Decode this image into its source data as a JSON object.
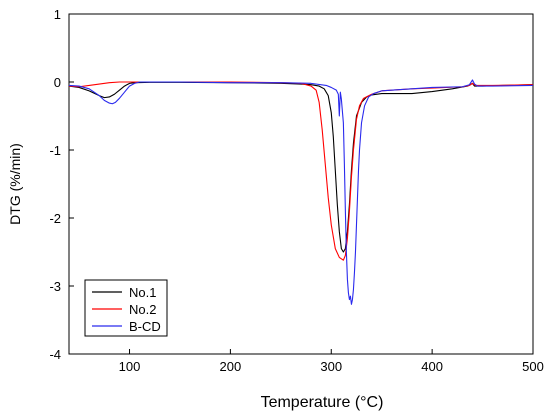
{
  "chart_data": {
    "type": "line",
    "xlabel": "Temperature (°C)",
    "ylabel": "DTG (%/min)",
    "xlim": [
      40,
      500
    ],
    "ylim": [
      -4,
      1
    ],
    "x_ticks": [
      100,
      200,
      300,
      400,
      500
    ],
    "y_ticks": [
      1,
      0,
      -1,
      -2,
      -3,
      -4
    ],
    "grid": false,
    "legend_position": "bottom-left",
    "series": [
      {
        "name": "No.1",
        "color": "#000000",
        "points": [
          [
            40,
            -0.06
          ],
          [
            50,
            -0.08
          ],
          [
            60,
            -0.13
          ],
          [
            70,
            -0.2
          ],
          [
            75,
            -0.23
          ],
          [
            80,
            -0.22
          ],
          [
            85,
            -0.18
          ],
          [
            90,
            -0.12
          ],
          [
            95,
            -0.06
          ],
          [
            100,
            -0.02
          ],
          [
            105,
            -0.01
          ],
          [
            120,
            -0.005
          ],
          [
            150,
            -0.005
          ],
          [
            200,
            -0.01
          ],
          [
            250,
            -0.02
          ],
          [
            270,
            -0.03
          ],
          [
            280,
            -0.04
          ],
          [
            288,
            -0.06
          ],
          [
            293,
            -0.1
          ],
          [
            297,
            -0.2
          ],
          [
            300,
            -0.45
          ],
          [
            302,
            -0.8
          ],
          [
            304,
            -1.3
          ],
          [
            306,
            -1.8
          ],
          [
            308,
            -2.2
          ],
          [
            310,
            -2.45
          ],
          [
            312,
            -2.5
          ],
          [
            314,
            -2.45
          ],
          [
            316,
            -2.2
          ],
          [
            318,
            -1.8
          ],
          [
            320,
            -1.3
          ],
          [
            322,
            -0.9
          ],
          [
            325,
            -0.5
          ],
          [
            330,
            -0.3
          ],
          [
            335,
            -0.22
          ],
          [
            340,
            -0.19
          ],
          [
            350,
            -0.17
          ],
          [
            380,
            -0.17
          ],
          [
            400,
            -0.14
          ],
          [
            420,
            -0.1
          ],
          [
            435,
            -0.06
          ],
          [
            440,
            -0.02
          ],
          [
            442,
            -0.06
          ],
          [
            450,
            -0.06
          ],
          [
            470,
            -0.05
          ],
          [
            500,
            -0.04
          ]
        ]
      },
      {
        "name": "No.2",
        "color": "#ff0000",
        "points": [
          [
            40,
            -0.06
          ],
          [
            50,
            -0.07
          ],
          [
            60,
            -0.05
          ],
          [
            70,
            -0.03
          ],
          [
            80,
            -0.01
          ],
          [
            90,
            0
          ],
          [
            100,
            0
          ],
          [
            150,
            0
          ],
          [
            200,
            0
          ],
          [
            250,
            -0.01
          ],
          [
            270,
            -0.02
          ],
          [
            280,
            -0.06
          ],
          [
            285,
            -0.12
          ],
          [
            288,
            -0.3
          ],
          [
            291,
            -0.7
          ],
          [
            294,
            -1.2
          ],
          [
            297,
            -1.7
          ],
          [
            300,
            -2.1
          ],
          [
            304,
            -2.45
          ],
          [
            308,
            -2.58
          ],
          [
            312,
            -2.62
          ],
          [
            314,
            -2.55
          ],
          [
            316,
            -2.3
          ],
          [
            318,
            -1.9
          ],
          [
            320,
            -1.4
          ],
          [
            322,
            -1.0
          ],
          [
            325,
            -0.55
          ],
          [
            328,
            -0.35
          ],
          [
            332,
            -0.24
          ],
          [
            340,
            -0.18
          ],
          [
            350,
            -0.13
          ],
          [
            380,
            -0.1
          ],
          [
            400,
            -0.09
          ],
          [
            430,
            -0.07
          ],
          [
            437,
            -0.05
          ],
          [
            440,
            -0.02
          ],
          [
            443,
            -0.05
          ],
          [
            460,
            -0.05
          ],
          [
            500,
            -0.04
          ]
        ]
      },
      {
        "name": "B-CD",
        "color": "#2a2aee",
        "points": [
          [
            40,
            -0.05
          ],
          [
            50,
            -0.06
          ],
          [
            60,
            -0.1
          ],
          [
            70,
            -0.2
          ],
          [
            75,
            -0.27
          ],
          [
            80,
            -0.31
          ],
          [
            83,
            -0.32
          ],
          [
            86,
            -0.3
          ],
          [
            90,
            -0.24
          ],
          [
            95,
            -0.15
          ],
          [
            100,
            -0.06
          ],
          [
            105,
            -0.02
          ],
          [
            110,
            0
          ],
          [
            150,
            0
          ],
          [
            200,
            -0.01
          ],
          [
            250,
            -0.01
          ],
          [
            280,
            -0.02
          ],
          [
            295,
            -0.05
          ],
          [
            300,
            -0.08
          ],
          [
            305,
            -0.12
          ],
          [
            307,
            -0.18
          ],
          [
            308,
            -0.5
          ],
          [
            309,
            -0.15
          ],
          [
            310,
            -0.25
          ],
          [
            312,
            -0.6
          ],
          [
            313,
            -1.2
          ],
          [
            314,
            -1.9
          ],
          [
            315,
            -2.5
          ],
          [
            316,
            -2.9
          ],
          [
            317,
            -3.1
          ],
          [
            318,
            -3.2
          ],
          [
            319,
            -3.15
          ],
          [
            320,
            -3.27
          ],
          [
            321,
            -3.2
          ],
          [
            322,
            -3.05
          ],
          [
            323,
            -2.8
          ],
          [
            324,
            -2.5
          ],
          [
            325,
            -2.1
          ],
          [
            326,
            -1.7
          ],
          [
            327,
            -1.3
          ],
          [
            328,
            -1.0
          ],
          [
            330,
            -0.6
          ],
          [
            333,
            -0.35
          ],
          [
            337,
            -0.22
          ],
          [
            342,
            -0.17
          ],
          [
            350,
            -0.13
          ],
          [
            380,
            -0.1
          ],
          [
            400,
            -0.08
          ],
          [
            430,
            -0.07
          ],
          [
            437,
            -0.04
          ],
          [
            440,
            0.03
          ],
          [
            442,
            -0.03
          ],
          [
            445,
            -0.06
          ],
          [
            460,
            -0.06
          ],
          [
            500,
            -0.05
          ]
        ]
      }
    ]
  }
}
